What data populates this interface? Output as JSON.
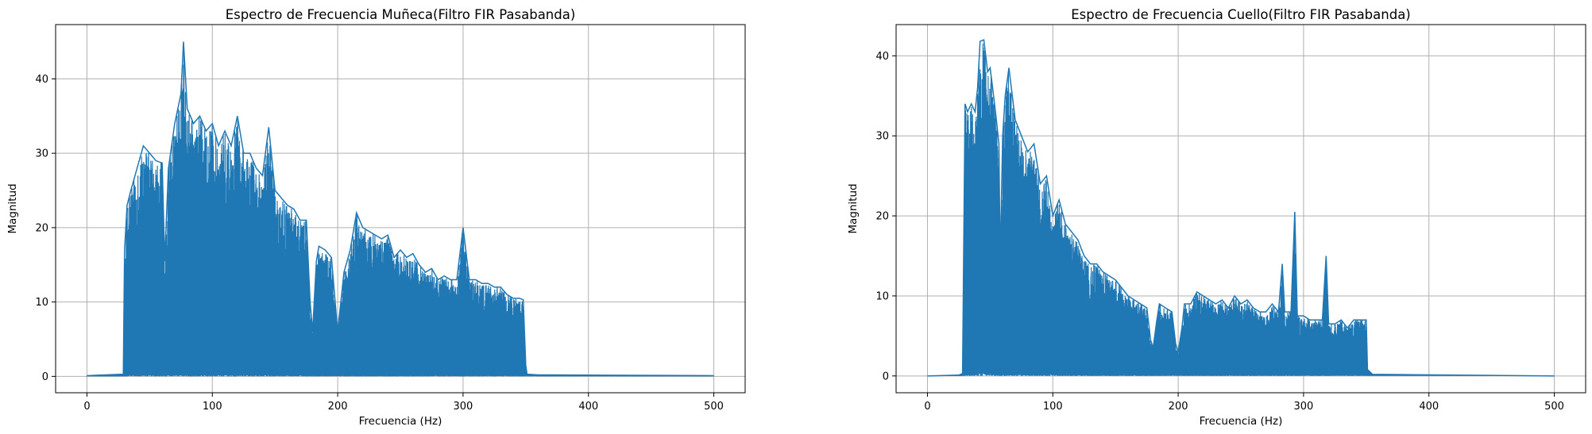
{
  "chart_data": [
    {
      "type": "line",
      "title": "Espectro de Frecuencia Muñeca(Filtro FIR Pasabanda)",
      "xlabel": "Frecuencia (Hz)",
      "ylabel": "Magnitud",
      "xlim": [
        -25,
        525
      ],
      "ylim": [
        -2.2,
        47.3
      ],
      "xticks": [
        0,
        100,
        200,
        300,
        400,
        500
      ],
      "yticks": [
        0,
        10,
        20,
        30,
        40
      ],
      "grid": true,
      "color": "#1f77b4",
      "series": [
        {
          "envelope_x": [
            0,
            29,
            30,
            32,
            35,
            40,
            45,
            50,
            55,
            60,
            62,
            65,
            70,
            75,
            77,
            80,
            85,
            90,
            95,
            100,
            105,
            110,
            115,
            120,
            125,
            130,
            135,
            140,
            145,
            150,
            155,
            160,
            165,
            170,
            175,
            178,
            180,
            183,
            185,
            190,
            195,
            198,
            200,
            205,
            210,
            213,
            215,
            220,
            225,
            230,
            235,
            240,
            245,
            250,
            255,
            260,
            265,
            270,
            275,
            280,
            285,
            290,
            295,
            300,
            305,
            310,
            315,
            320,
            325,
            330,
            335,
            340,
            345,
            348,
            350,
            351,
            360,
            370,
            500
          ],
          "envelope_max": [
            0.1,
            0.3,
            17,
            23,
            25,
            28,
            31,
            30,
            29,
            28.7,
            15.5,
            28,
            34,
            38,
            45,
            36,
            34,
            35,
            33,
            34,
            31,
            33,
            31,
            35,
            30,
            30,
            28,
            27,
            33.5,
            25,
            24,
            23,
            22.5,
            21,
            21,
            10,
            6,
            15.5,
            17.5,
            17,
            16,
            10,
            6,
            14,
            17,
            20,
            22,
            20,
            19.5,
            19,
            18.5,
            19,
            16,
            17,
            16,
            16.5,
            15,
            14,
            14.5,
            13,
            13.5,
            13,
            13,
            20,
            13,
            13,
            12.5,
            12.5,
            12,
            12,
            11,
            10.5,
            10.5,
            10.3,
            1.5,
            0.3,
            0.2,
            0.2,
            0.1
          ],
          "envelope_min": [
            0,
            0,
            0,
            0.1,
            0.2,
            0.1,
            0.2,
            0.3,
            0.2,
            0.2,
            0.1,
            0.2,
            0.3,
            0.5,
            0.2,
            0.3,
            0.2,
            0.3,
            0.3,
            0.2,
            0.3,
            0.2,
            0.3,
            0.2,
            0.3,
            0.2,
            0.2,
            0.3,
            0.2,
            0.2,
            0.2,
            0.2,
            0.1,
            0.2,
            0.1,
            0.1,
            0.1,
            0.1,
            0.1,
            0.1,
            0.1,
            0.1,
            0.1,
            0.1,
            0.1,
            0.1,
            0.1,
            0.1,
            0.1,
            0.1,
            0.1,
            0.1,
            0.1,
            0.1,
            0.1,
            0.1,
            0.1,
            0.1,
            0.1,
            0.1,
            0.1,
            0.1,
            0.1,
            0.1,
            0.1,
            0.1,
            0.1,
            0.1,
            0.1,
            0.1,
            0.1,
            0.1,
            0.1,
            0.1,
            0.1,
            0.1,
            0.05,
            0.05,
            0
          ]
        }
      ]
    },
    {
      "type": "line",
      "title": "Espectro de Frecuencia Cuello(Filtro FIR Pasabanda)",
      "xlabel": "Frecuencia (Hz)",
      "ylabel": "Magnitud",
      "xlim": [
        -25,
        525
      ],
      "ylim": [
        -2.1,
        43.9
      ],
      "xticks": [
        0,
        100,
        200,
        300,
        400,
        500
      ],
      "yticks": [
        0,
        10,
        20,
        30,
        40
      ],
      "grid": true,
      "color": "#1f77b4",
      "series": [
        {
          "envelope_x": [
            0,
            25,
            28,
            30,
            32,
            35,
            38,
            40,
            42,
            45,
            48,
            50,
            52,
            55,
            57,
            58,
            60,
            62,
            65,
            70,
            75,
            80,
            85,
            90,
            95,
            100,
            105,
            110,
            115,
            120,
            125,
            130,
            135,
            140,
            145,
            150,
            155,
            160,
            165,
            170,
            175,
            178,
            180,
            183,
            185,
            190,
            195,
            198,
            200,
            203,
            205,
            210,
            215,
            220,
            225,
            230,
            235,
            240,
            245,
            250,
            255,
            260,
            265,
            270,
            275,
            280,
            283,
            285,
            290,
            293,
            295,
            300,
            305,
            310,
            315,
            318,
            320,
            325,
            330,
            335,
            340,
            345,
            350,
            351,
            355,
            500
          ],
          "envelope_max": [
            0,
            0.1,
            0.3,
            34,
            33,
            34,
            33,
            36,
            41.8,
            42,
            38,
            38.5,
            36,
            32,
            29,
            14,
            30,
            35,
            38.5,
            32,
            30,
            28,
            29,
            24,
            25,
            20,
            22,
            19,
            18,
            17,
            15,
            14,
            14,
            13,
            12.5,
            12,
            11,
            10,
            9.5,
            9,
            8.5,
            4.5,
            3.5,
            7,
            9,
            8.5,
            8,
            4,
            3,
            6,
            9,
            9,
            10.5,
            10,
            9.5,
            9,
            9.5,
            8.5,
            10,
            9,
            9.5,
            8.5,
            8,
            8,
            9,
            8,
            14,
            8,
            8,
            20.5,
            7.5,
            7.5,
            7,
            7,
            7,
            15,
            6.5,
            6.5,
            7,
            6,
            7,
            7,
            7,
            0.8,
            0.2,
            0
          ],
          "envelope_min": [
            0,
            0,
            0,
            0.2,
            0.3,
            0.2,
            0.3,
            0.4,
            0.5,
            0.4,
            0.3,
            0.4,
            0.3,
            0.3,
            0.2,
            0.1,
            0.2,
            0.3,
            0.3,
            0.2,
            0.3,
            0.2,
            0.2,
            0.2,
            0.2,
            0.2,
            0.2,
            0.1,
            0.2,
            0.1,
            0.1,
            0.1,
            0.1,
            0.1,
            0.1,
            0.1,
            0.1,
            0.1,
            0.1,
            0.1,
            0.1,
            0.1,
            0.1,
            0.1,
            0.1,
            0.1,
            0.1,
            0.1,
            0.1,
            0.1,
            0.1,
            0.1,
            0.1,
            0.1,
            0.1,
            0.1,
            0.1,
            0.1,
            0.1,
            0.1,
            0.1,
            0.1,
            0.1,
            0.1,
            0.1,
            0.1,
            0.1,
            0.1,
            0.1,
            0.1,
            0.1,
            0.1,
            0.1,
            0.1,
            0.1,
            0.1,
            0.1,
            0.1,
            0.1,
            0.1,
            0.1,
            0.1,
            0.1,
            0.1,
            0.05,
            0
          ]
        }
      ]
    }
  ]
}
